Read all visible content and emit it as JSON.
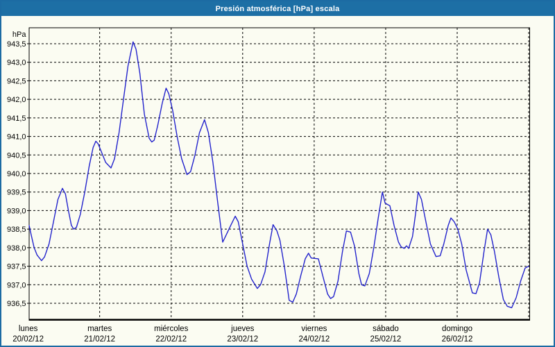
{
  "window": {
    "title": "Presión atmosférica [hPa] escala"
  },
  "colors": {
    "title_bar": "#1d6fa5",
    "title_text": "#ffffff",
    "frame_border": "#1c6ba3",
    "background": "#fbfcf2",
    "line": "#2222cc",
    "grid": "#000000",
    "label_text": "#000000"
  },
  "chart_data": {
    "type": "line",
    "title": "Presión atmosférica [hPa] escala",
    "series_name": "Presión atmosférica",
    "unit_label": "hPa",
    "grid": "dashed",
    "legend": "none",
    "ylim": [
      936.07,
      943.93
    ],
    "xlim_hours": [
      0,
      168
    ],
    "y_ticks": [
      {
        "value": 943.5,
        "label": "943,5"
      },
      {
        "value": 943.0,
        "label": "943,0"
      },
      {
        "value": 942.5,
        "label": "942,5"
      },
      {
        "value": 942.0,
        "label": "942,0"
      },
      {
        "value": 941.5,
        "label": "941,5"
      },
      {
        "value": 941.0,
        "label": "941,0"
      },
      {
        "value": 940.5,
        "label": "940,5"
      },
      {
        "value": 940.0,
        "label": "940,0"
      },
      {
        "value": 939.5,
        "label": "939,5"
      },
      {
        "value": 939.0,
        "label": "939,0"
      },
      {
        "value": 938.5,
        "label": "938,5"
      },
      {
        "value": 938.0,
        "label": "938,0"
      },
      {
        "value": 937.5,
        "label": "937,5"
      },
      {
        "value": 937.0,
        "label": "937,0"
      },
      {
        "value": 936.5,
        "label": "936,5"
      }
    ],
    "x_days": [
      {
        "name": "lunes",
        "date": "20/02/12",
        "hour": 0
      },
      {
        "name": "martes",
        "date": "21/02/12",
        "hour": 24
      },
      {
        "name": "miércoles",
        "date": "22/02/12",
        "hour": 48
      },
      {
        "name": "jueves",
        "date": "23/02/12",
        "hour": 72
      },
      {
        "name": "viernes",
        "date": "24/02/12",
        "hour": 96
      },
      {
        "name": "sábado",
        "date": "25/02/12",
        "hour": 120
      },
      {
        "name": "domingo",
        "date": "26/02/12",
        "hour": 144
      }
    ],
    "x_gridline_hours": [
      24,
      48,
      72,
      96,
      120,
      144,
      168
    ],
    "points": [
      [
        0,
        938.6
      ],
      [
        1,
        938.35
      ],
      [
        2,
        938.0
      ],
      [
        3,
        937.8
      ],
      [
        4.5,
        937.65
      ],
      [
        5.5,
        937.75
      ],
      [
        7,
        938.1
      ],
      [
        8.5,
        938.7
      ],
      [
        10,
        939.3
      ],
      [
        11.5,
        939.6
      ],
      [
        12.5,
        939.45
      ],
      [
        13.5,
        939.0
      ],
      [
        14.5,
        938.6
      ],
      [
        15.3,
        938.5
      ],
      [
        16.2,
        938.55
      ],
      [
        17.5,
        938.9
      ],
      [
        19,
        939.5
      ],
      [
        20.5,
        940.2
      ],
      [
        21.8,
        940.7
      ],
      [
        22.7,
        940.87
      ],
      [
        23.5,
        940.8
      ],
      [
        24.5,
        940.6
      ],
      [
        26,
        940.3
      ],
      [
        27.8,
        940.15
      ],
      [
        29,
        940.4
      ],
      [
        30.5,
        941.1
      ],
      [
        32,
        942.0
      ],
      [
        33.5,
        942.9
      ],
      [
        35.2,
        943.55
      ],
      [
        36.2,
        943.35
      ],
      [
        37.5,
        942.7
      ],
      [
        39,
        941.6
      ],
      [
        40.6,
        940.95
      ],
      [
        41.5,
        940.85
      ],
      [
        42.3,
        940.9
      ],
      [
        43.5,
        941.3
      ],
      [
        45,
        941.9
      ],
      [
        46.3,
        942.3
      ],
      [
        47.2,
        942.15
      ],
      [
        48.5,
        941.7
      ],
      [
        50,
        941.0
      ],
      [
        51.5,
        940.4
      ],
      [
        53.3,
        939.97
      ],
      [
        54.5,
        940.05
      ],
      [
        56,
        940.5
      ],
      [
        57.5,
        941.1
      ],
      [
        59.2,
        941.45
      ],
      [
        60.5,
        941.1
      ],
      [
        62,
        940.3
      ],
      [
        63.5,
        939.3
      ],
      [
        65.3,
        938.15
      ],
      [
        66.5,
        938.35
      ],
      [
        68,
        938.6
      ],
      [
        69.5,
        938.85
      ],
      [
        70.5,
        938.7
      ],
      [
        72,
        938.1
      ],
      [
        73.5,
        937.5
      ],
      [
        75,
        937.15
      ],
      [
        76.9,
        936.9
      ],
      [
        78,
        937.0
      ],
      [
        79.5,
        937.35
      ],
      [
        81,
        938.1
      ],
      [
        82.2,
        938.62
      ],
      [
        83.5,
        938.45
      ],
      [
        84.5,
        938.2
      ],
      [
        86,
        937.5
      ],
      [
        87.6,
        936.58
      ],
      [
        88.8,
        936.53
      ],
      [
        90,
        936.75
      ],
      [
        91.5,
        937.25
      ],
      [
        93,
        937.7
      ],
      [
        94.1,
        937.85
      ],
      [
        95,
        937.72
      ],
      [
        97.4,
        937.7
      ],
      [
        99,
        937.2
      ],
      [
        100.5,
        936.75
      ],
      [
        101.5,
        936.63
      ],
      [
        102.5,
        936.68
      ],
      [
        104,
        937.1
      ],
      [
        105.5,
        937.9
      ],
      [
        106.8,
        938.45
      ],
      [
        108.2,
        938.42
      ],
      [
        109.5,
        938.05
      ],
      [
        111,
        937.3
      ],
      [
        111.9,
        937.0
      ],
      [
        113,
        936.97
      ],
      [
        114.5,
        937.3
      ],
      [
        116,
        938.0
      ],
      [
        117.5,
        938.8
      ],
      [
        118.9,
        939.5
      ],
      [
        119.8,
        939.2
      ],
      [
        121.4,
        939.13
      ],
      [
        122.8,
        938.6
      ],
      [
        124.3,
        938.15
      ],
      [
        125.2,
        938.02
      ],
      [
        126.2,
        937.98
      ],
      [
        127,
        938.05
      ],
      [
        127.7,
        937.98
      ],
      [
        129,
        938.3
      ],
      [
        130,
        938.9
      ],
      [
        130.9,
        939.5
      ],
      [
        132,
        939.3
      ],
      [
        133.5,
        938.7
      ],
      [
        135,
        938.1
      ],
      [
        136.9,
        937.76
      ],
      [
        138.3,
        937.78
      ],
      [
        139.5,
        938.1
      ],
      [
        141,
        938.6
      ],
      [
        141.9,
        938.8
      ],
      [
        143,
        938.7
      ],
      [
        144.2,
        938.5
      ],
      [
        145.5,
        938.1
      ],
      [
        147,
        937.4
      ],
      [
        149.1,
        936.78
      ],
      [
        150.3,
        936.76
      ],
      [
        151.5,
        937.05
      ],
      [
        153,
        937.9
      ],
      [
        154.2,
        938.5
      ],
      [
        155.3,
        938.35
      ],
      [
        156.5,
        937.9
      ],
      [
        158,
        937.2
      ],
      [
        159.5,
        936.6
      ],
      [
        160.8,
        936.42
      ],
      [
        162.3,
        936.38
      ],
      [
        163.8,
        936.65
      ],
      [
        165.3,
        937.1
      ],
      [
        166.8,
        937.45
      ],
      [
        168,
        937.5
      ]
    ]
  }
}
